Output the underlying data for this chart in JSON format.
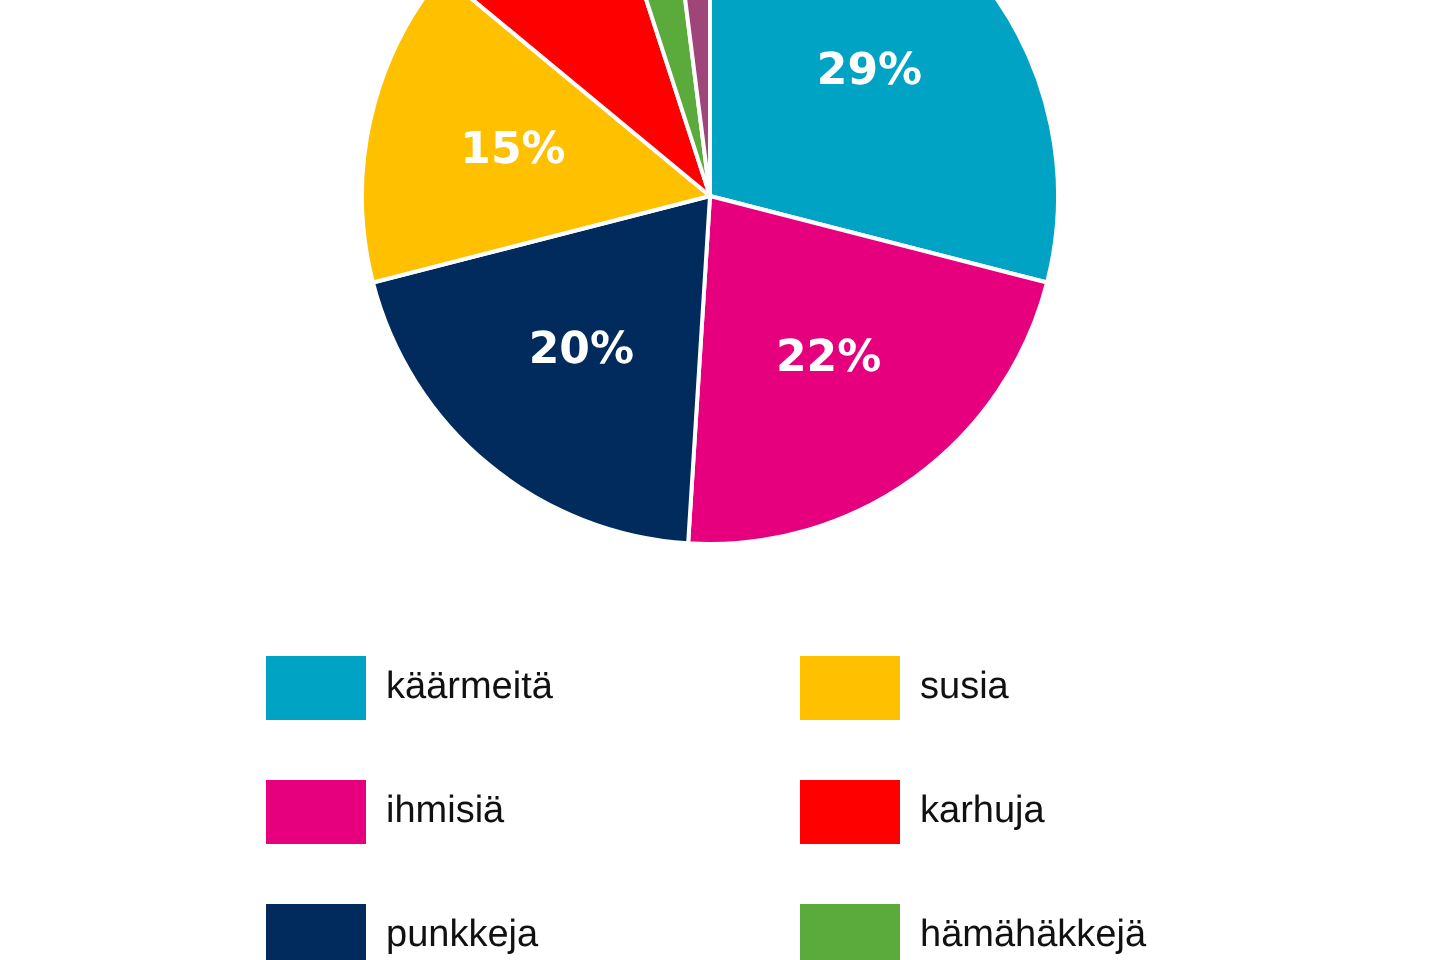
{
  "chart_data": {
    "type": "pie",
    "categories": [
      "käärmeitä",
      "ihmisiä",
      "punkkeja",
      "susia",
      "karhuja",
      "hämähäkkejä",
      null
    ],
    "values": [
      29,
      22,
      20,
      15,
      9,
      3,
      2
    ],
    "colors": [
      "#00a3c4",
      "#e6007e",
      "#002b5c",
      "#ffc000",
      "#ff0000",
      "#5aaa3c",
      "#a0457a"
    ],
    "value_labels": [
      "29%",
      "22%",
      "20%",
      "15%",
      null,
      null,
      null
    ],
    "legend": "bottom"
  }
}
